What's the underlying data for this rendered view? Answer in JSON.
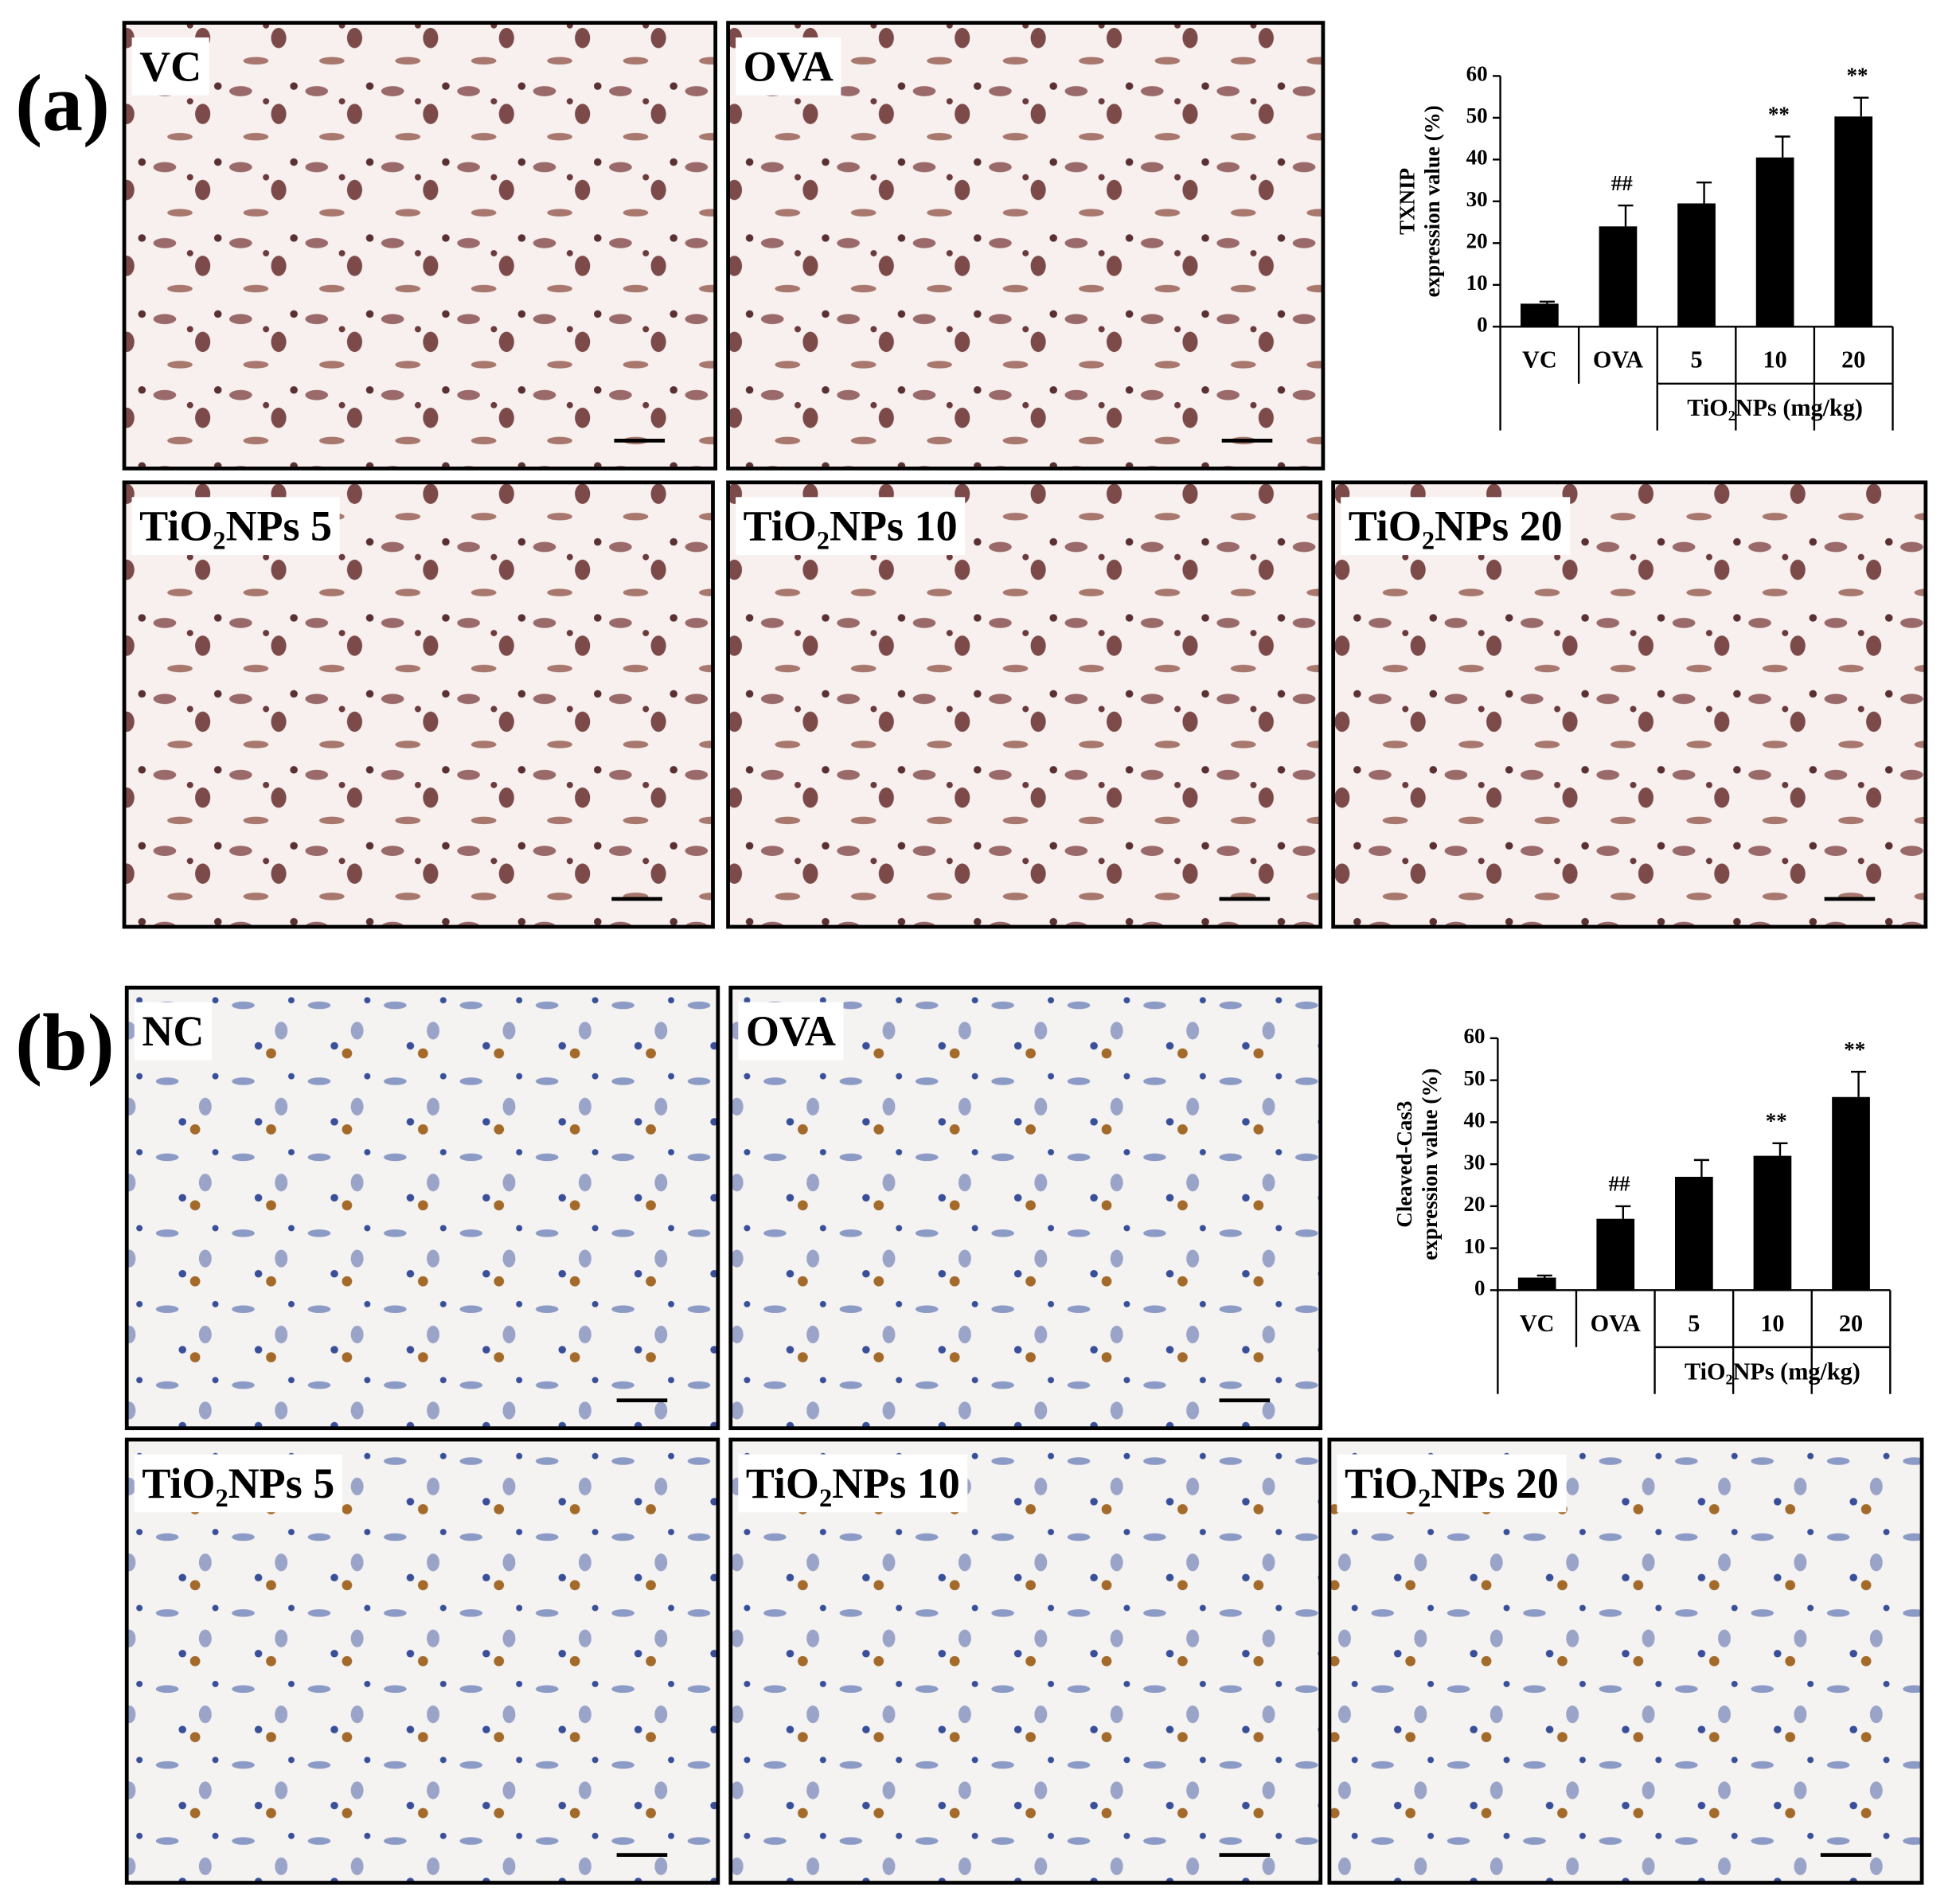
{
  "panels": [
    {
      "label": "(a)",
      "images": [
        "VC",
        "OVA",
        "TiO₂NPs 5",
        "TiO₂NPs 10",
        "TiO₂NPs 20"
      ]
    },
    {
      "label": "(b)",
      "images": [
        "NC",
        "OVA",
        "TiO₂NPs 5",
        "TiO₂NPs 10",
        "TiO₂NPs 20"
      ]
    }
  ],
  "chart_data": [
    {
      "type": "bar",
      "ylabel": [
        "TXNIP",
        "expression value (%)"
      ],
      "group_label": "TiO₂NPs (mg/kg)",
      "categories": [
        "VC",
        "OVA",
        "5",
        "10",
        "20"
      ],
      "values": [
        5.5,
        24,
        29.5,
        40.5,
        50.3
      ],
      "errors": [
        0.5,
        5,
        5,
        5,
        4.5
      ],
      "significance": [
        null,
        "##",
        null,
        "**",
        "**"
      ],
      "color": "#000000",
      "ylim": [
        0,
        60
      ],
      "yticks": [
        0,
        10,
        20,
        30,
        40,
        50,
        60
      ]
    },
    {
      "type": "bar",
      "ylabel": [
        "Cleaved-Cas3",
        "expression value (%)"
      ],
      "group_label": "TiO₂NPs (mg/kg)",
      "categories": [
        "VC",
        "OVA",
        "5",
        "10",
        "20"
      ],
      "values": [
        3,
        17,
        27,
        32,
        46
      ],
      "errors": [
        0.5,
        3,
        4,
        3,
        6
      ],
      "significance": [
        null,
        "##",
        null,
        "**",
        "**"
      ],
      "color": "#000000",
      "ylim": [
        0,
        60
      ],
      "yticks": [
        0,
        10,
        20,
        30,
        40,
        50,
        60
      ]
    }
  ]
}
